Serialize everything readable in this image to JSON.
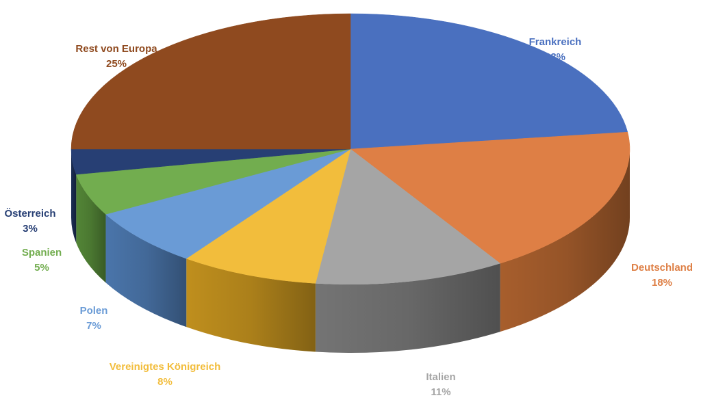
{
  "chart_data": {
    "type": "pie",
    "style": "3d",
    "title": "",
    "legend": "none",
    "slices": [
      {
        "label": "Frankreich",
        "value": 23,
        "value_label": "23%",
        "color": "#4a70bf",
        "side_color": "#3a5a99"
      },
      {
        "label": "Deutschland",
        "value": 18,
        "value_label": "18%",
        "color": "#de7f45",
        "side_color": "#b0632f"
      },
      {
        "label": "Italien",
        "value": 11,
        "value_label": "11%",
        "color": "#a5a5a5",
        "side_color": "#7a7a7a"
      },
      {
        "label": "Vereinigtes Königreich",
        "value": 8,
        "value_label": "8%",
        "color": "#f2bd3c",
        "side_color": "#c9961f"
      },
      {
        "label": "Polen",
        "value": 7,
        "value_label": "7%",
        "color": "#6a9bd6",
        "side_color": "#4e7bb3"
      },
      {
        "label": "Spanien",
        "value": 5,
        "value_label": "5%",
        "color": "#72ad4f",
        "side_color": "#578c39"
      },
      {
        "label": "Österreich",
        "value": 3,
        "value_label": "3%",
        "color": "#273f74",
        "side_color": "#1c2f57"
      },
      {
        "label": "Rest von Europa",
        "value": 25,
        "value_label": "25%",
        "color": "#8f4a1f",
        "side_color": "#6b3412"
      }
    ]
  }
}
